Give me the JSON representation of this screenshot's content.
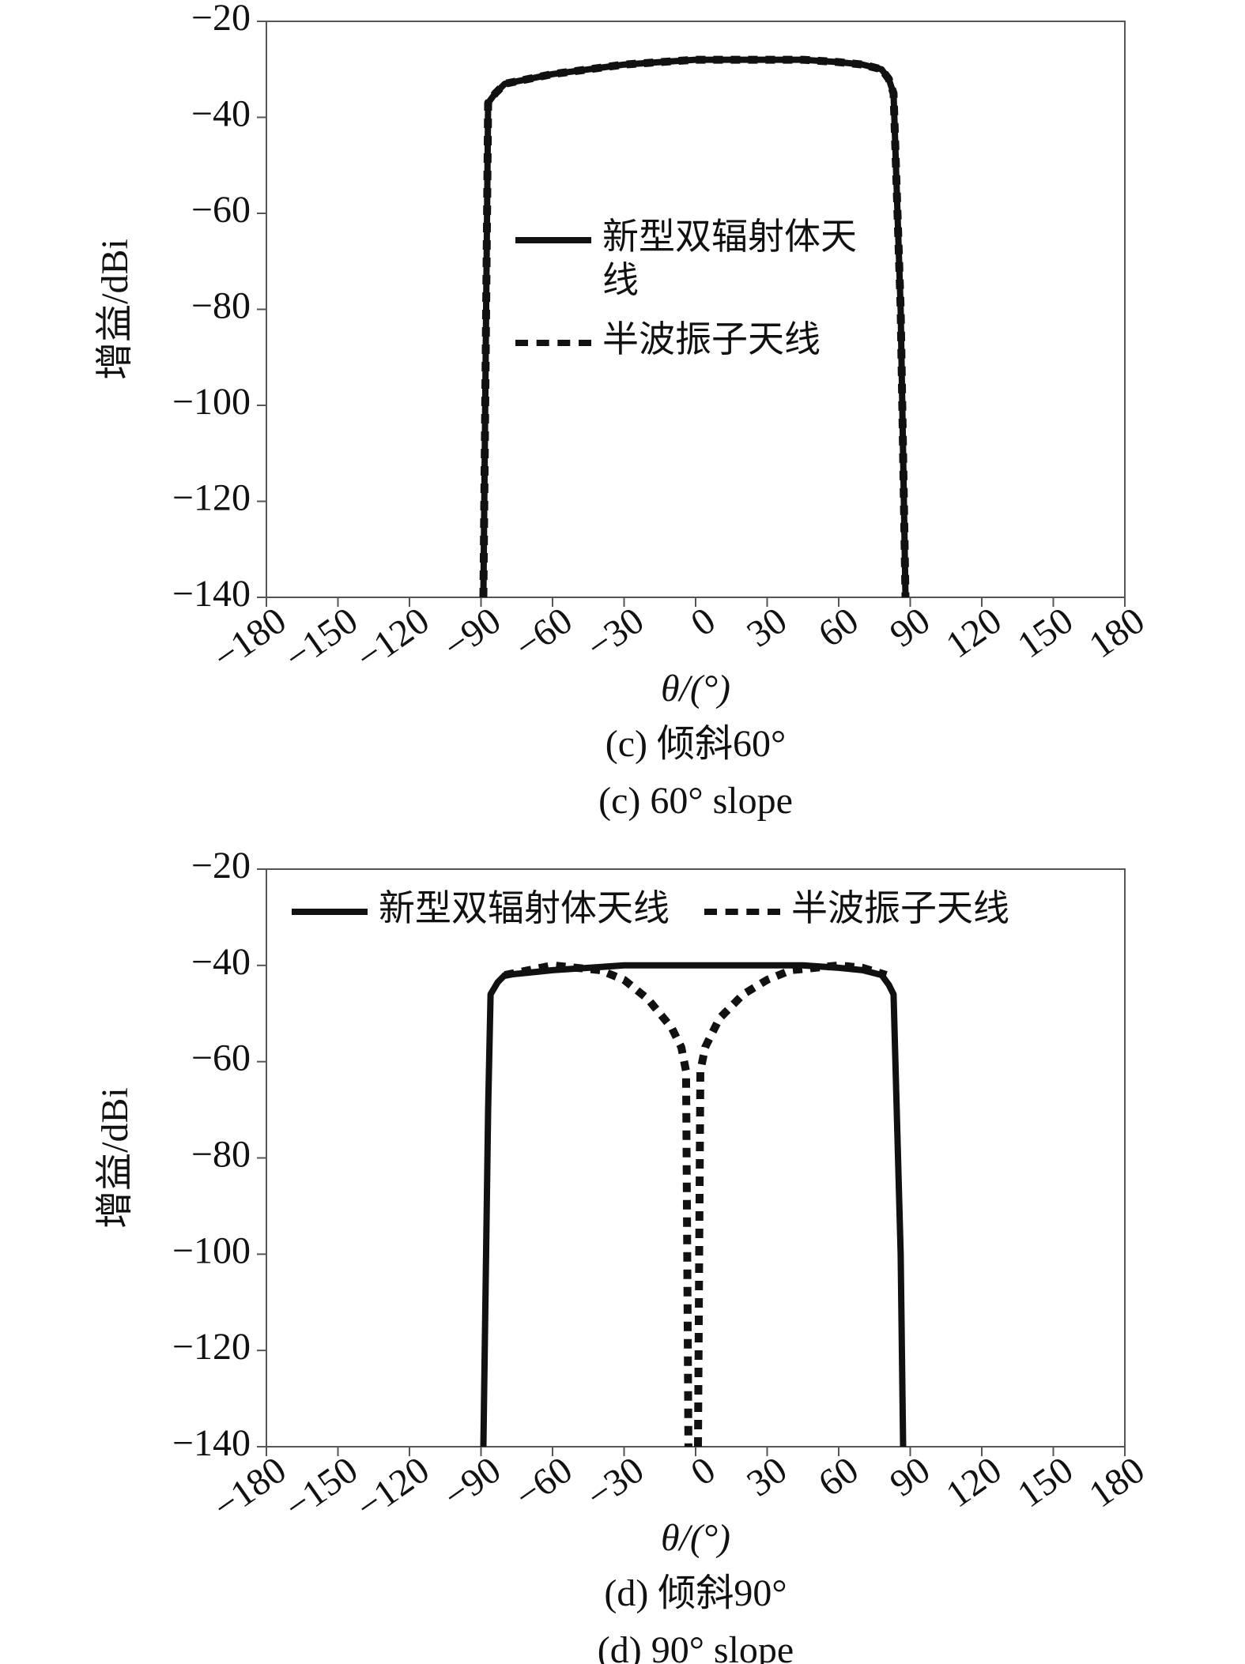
{
  "chart_data": [
    {
      "type": "line",
      "ylabel": "增益/dBi",
      "xlabel": "θ/(°)",
      "caption": [
        "(c) 倾斜60°",
        "(c) 60° slope"
      ],
      "xlim": [
        -180,
        180
      ],
      "ylim": [
        -140,
        -20
      ],
      "xticks": [
        {
          "value": -180,
          "label": "−180"
        },
        {
          "value": -150,
          "label": "−150"
        },
        {
          "value": -120,
          "label": "−120"
        },
        {
          "value": -90,
          "label": "−90"
        },
        {
          "value": -60,
          "label": "−60"
        },
        {
          "value": -30,
          "label": "−30"
        },
        0,
        30,
        60,
        90,
        120,
        150,
        180
      ],
      "yticks": [
        {
          "value": -140,
          "label": "−140"
        },
        {
          "value": -120,
          "label": "−120"
        },
        {
          "value": -100,
          "label": "−100"
        },
        {
          "value": -80,
          "label": "−80"
        },
        {
          "value": -60,
          "label": "−60"
        },
        {
          "value": -40,
          "label": "−40"
        },
        {
          "value": -20,
          "label": "−20"
        }
      ],
      "legend": "center",
      "series": [
        {
          "name": "半波振子天线",
          "color": "#111111",
          "style": "dashed",
          "x": [
            -89,
            -87,
            -84,
            -80,
            -70,
            -60,
            -45,
            -30,
            -15,
            0,
            15,
            30,
            45,
            60,
            70,
            78,
            81,
            83,
            86,
            88
          ],
          "values": [
            -140,
            -37,
            -35,
            -33,
            -32,
            -31,
            -30,
            -29,
            -28.5,
            -28,
            -28,
            -28,
            -28,
            -28.5,
            -29,
            -30,
            -32,
            -35,
            -80,
            -140
          ]
        },
        {
          "name": "新型双辐射体天线",
          "color": "#111111",
          "style": "solid",
          "x": [
            -89,
            -87,
            -84,
            -80,
            -70,
            -60,
            -45,
            -30,
            -15,
            0,
            15,
            30,
            45,
            60,
            70,
            78,
            81,
            83,
            86,
            88
          ],
          "values": [
            -140,
            -37,
            -35,
            -33,
            -32,
            -31,
            -30,
            -29,
            -28.5,
            -28,
            -28,
            -28,
            -28,
            -28.5,
            -29,
            -30,
            -32,
            -35,
            -80,
            -140
          ]
        }
      ]
    },
    {
      "type": "line",
      "ylabel": "增益/dBi",
      "xlabel": "θ/(°)",
      "caption": [
        "(d) 倾斜90°",
        "(d) 90° slope"
      ],
      "xlim": [
        -180,
        180
      ],
      "ylim": [
        -140,
        -20
      ],
      "xticks": [
        {
          "value": -180,
          "label": "−180"
        },
        {
          "value": -150,
          "label": "−150"
        },
        {
          "value": -120,
          "label": "−120"
        },
        {
          "value": -90,
          "label": "−90"
        },
        {
          "value": -60,
          "label": "−60"
        },
        {
          "value": -30,
          "label": "−30"
        },
        0,
        30,
        60,
        90,
        120,
        150,
        180
      ],
      "yticks": [
        {
          "value": -140,
          "label": "−140"
        },
        {
          "value": -120,
          "label": "−120"
        },
        {
          "value": -100,
          "label": "−100"
        },
        {
          "value": -80,
          "label": "−80"
        },
        {
          "value": -60,
          "label": "−60"
        },
        {
          "value": -40,
          "label": "−40"
        },
        {
          "value": -20,
          "label": "−20"
        }
      ],
      "legend": "top",
      "series": [
        {
          "name": "新型双辐射体天线",
          "color": "#111111",
          "style": "solid",
          "x": [
            -89,
            -87,
            -86,
            -83,
            -80,
            -70,
            -60,
            -45,
            -30,
            -15,
            0,
            15,
            30,
            45,
            60,
            70,
            78,
            81,
            83,
            86,
            87
          ],
          "values": [
            -140,
            -70,
            -46,
            -43.5,
            -42,
            -41.5,
            -41,
            -40.5,
            -40,
            -40,
            -40,
            -40,
            -40,
            -40,
            -40.5,
            -41,
            -42,
            -44,
            -46,
            -100,
            -140
          ]
        },
        {
          "name": "半波振子天线",
          "color": "#111111",
          "style": "dashed",
          "x": [
            -80,
            -70,
            -60,
            -50,
            -40,
            -30,
            -20,
            -10,
            -6,
            -4,
            -3.5,
            -3,
            null,
            1,
            1.5,
            2,
            4,
            6,
            10,
            20,
            30,
            40,
            50,
            60,
            70,
            80
          ],
          "values": [
            -42,
            -41,
            -40,
            -40.5,
            -41,
            -43,
            -47,
            -53,
            -57,
            -62,
            -100,
            -140,
            null,
            -140,
            -100,
            -62,
            -57,
            -55,
            -51,
            -46,
            -43,
            -41,
            -40.5,
            -40,
            -40.5,
            -42
          ]
        }
      ]
    }
  ]
}
